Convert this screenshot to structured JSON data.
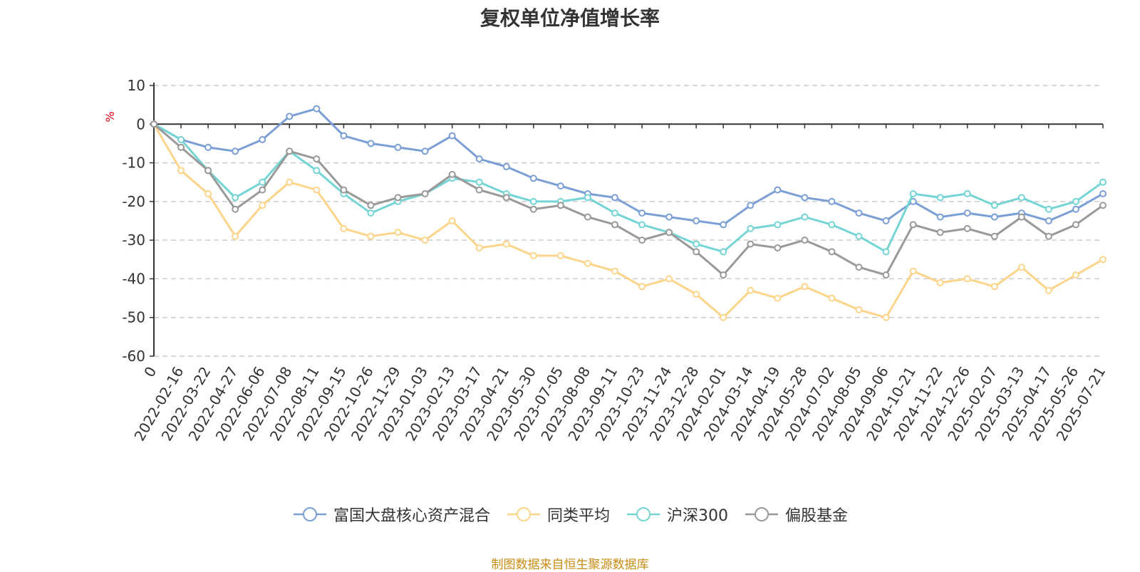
{
  "footer": "制图数据来自恒生聚源数据库",
  "chart_data": {
    "type": "line",
    "title": "复权单位净值增长率",
    "unit": "%",
    "ylim": [
      -60,
      10
    ],
    "yticks": [
      10,
      0,
      -10,
      -20,
      -30,
      -40,
      -50,
      -60
    ],
    "grid": true,
    "legend_position": "bottom",
    "x_labels": [
      "0",
      "2022-02-16",
      "2022-03-22",
      "2022-04-27",
      "2022-06-06",
      "2022-07-08",
      "2022-08-11",
      "2022-09-15",
      "2022-10-26",
      "2022-11-29",
      "2023-01-03",
      "2023-02-13",
      "2023-03-17",
      "2023-04-21",
      "2023-05-30",
      "2023-07-05",
      "2023-08-08",
      "2023-09-11",
      "2023-10-23",
      "2023-11-24",
      "2023-12-28",
      "2024-02-01",
      "2024-03-14",
      "2024-04-19",
      "2024-05-28",
      "2024-07-02",
      "2024-08-05",
      "2024-09-06",
      "2024-10-21",
      "2024-11-22",
      "2024-12-26",
      "2025-02-07",
      "2025-03-13",
      "2025-04-17",
      "2025-05-26",
      "2025-07-21"
    ],
    "series": [
      {
        "name": "富国大盘核心资产混合",
        "color": "#7b9fd4",
        "values": [
          0,
          -4,
          -6,
          -7,
          -4,
          2,
          4,
          -3,
          -5,
          -6,
          -7,
          -3,
          -9,
          -11,
          -14,
          -16,
          -18,
          -19,
          -23,
          -24,
          -25,
          -26,
          -21,
          -17,
          -19,
          -20,
          -23,
          -25,
          -20,
          -24,
          -23,
          -24,
          -23,
          -25,
          -22,
          -18
        ]
      },
      {
        "name": "同类平均",
        "color": "#fcd48a",
        "values": [
          0,
          -12,
          -18,
          -29,
          -21,
          -15,
          -17,
          -27,
          -29,
          -28,
          -30,
          -25,
          -32,
          -31,
          -34,
          -34,
          -36,
          -38,
          -42,
          -40,
          -44,
          -50,
          -43,
          -45,
          -42,
          -45,
          -48,
          -50,
          -38,
          -41,
          -40,
          -42,
          -37,
          -43,
          -39,
          -35
        ]
      },
      {
        "name": "沪深300",
        "color": "#75d4d4",
        "values": [
          0,
          -4,
          -12,
          -19,
          -15,
          -7,
          -12,
          -18,
          -23,
          -20,
          -18,
          -14,
          -15,
          -18,
          -20,
          -20,
          -19,
          -23,
          -26,
          -28,
          -31,
          -33,
          -27,
          -26,
          -24,
          -26,
          -29,
          -33,
          -18,
          -19,
          -18,
          -21,
          -19,
          -22,
          -20,
          -15
        ]
      },
      {
        "name": "偏股基金",
        "color": "#999999",
        "values": [
          0,
          -6,
          -12,
          -22,
          -17,
          -7,
          -9,
          -17,
          -21,
          -19,
          -18,
          -13,
          -17,
          -19,
          -22,
          -21,
          -24,
          -26,
          -30,
          -28,
          -33,
          -39,
          -31,
          -32,
          -30,
          -33,
          -37,
          -39,
          -26,
          -28,
          -27,
          -29,
          -24,
          -29,
          -26,
          -21
        ]
      }
    ]
  }
}
